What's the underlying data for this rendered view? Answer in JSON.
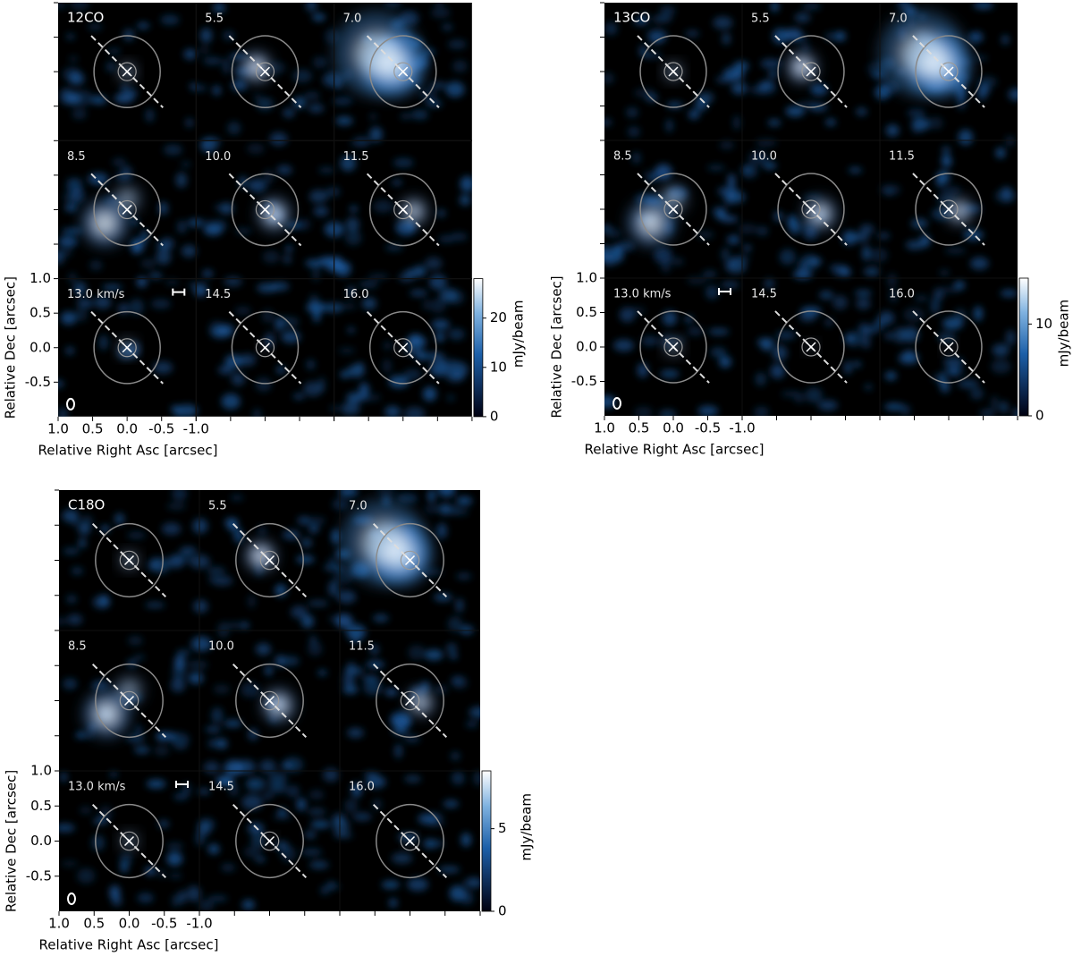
{
  "chart_data": [
    {
      "type": "channel_map",
      "title": "12CO",
      "channels": [
        "5.5",
        "7.0",
        "8.5",
        "10.0",
        "11.5",
        "13.0 km/s",
        "14.5",
        "16.0"
      ],
      "xlabel": "Relative Right Asc [arcsec]",
      "ylabel": "Relative Dec [arcsec]",
      "xlim": [
        1.0,
        -1.0
      ],
      "ylim": [
        -1.0,
        1.0
      ],
      "xticks": [
        {
          "value": 1.0,
          "label": "1.0"
        },
        {
          "value": 0.5,
          "label": "0.5"
        },
        {
          "value": 0.0,
          "label": "0.0"
        },
        {
          "value": -0.5,
          "label": "-0.5"
        },
        {
          "value": -1.0,
          "label": "-1.0"
        }
      ],
      "yticks": [
        {
          "value": 1.0,
          "label": "1.0"
        },
        {
          "value": 0.5,
          "label": "0.5"
        },
        {
          "value": 0.0,
          "label": "0.0"
        },
        {
          "value": -0.5,
          "label": "-0.5"
        }
      ],
      "colorbar_label": "mJy/beam",
      "clim": [
        0,
        28
      ],
      "cticks": [
        0,
        10,
        20
      ]
    },
    {
      "type": "channel_map",
      "title": "13CO",
      "channels": [
        "5.5",
        "7.0",
        "8.5",
        "10.0",
        "11.5",
        "13.0 km/s",
        "14.5",
        "16.0"
      ],
      "xlabel": "Relative Right Asc [arcsec]",
      "ylabel": "Relative Dec [arcsec]",
      "xlim": [
        1.0,
        -1.0
      ],
      "ylim": [
        -1.0,
        1.0
      ],
      "xticks": [
        {
          "value": 1.0,
          "label": "1.0"
        },
        {
          "value": 0.5,
          "label": "0.5"
        },
        {
          "value": 0.0,
          "label": "0.0"
        },
        {
          "value": -0.5,
          "label": "-0.5"
        },
        {
          "value": -1.0,
          "label": "-1.0"
        }
      ],
      "yticks": [
        {
          "value": 1.0,
          "label": "1.0"
        },
        {
          "value": 0.5,
          "label": "0.5"
        },
        {
          "value": 0.0,
          "label": "0.0"
        },
        {
          "value": -0.5,
          "label": "-0.5"
        }
      ],
      "colorbar_label": "mJy/beam",
      "clim": [
        0,
        15
      ],
      "cticks": [
        0,
        10
      ]
    },
    {
      "type": "channel_map",
      "title": "C18O",
      "channels": [
        "5.5",
        "7.0",
        "8.5",
        "10.0",
        "11.5",
        "13.0 km/s",
        "14.5",
        "16.0"
      ],
      "xlabel": "Relative Right Asc [arcsec]",
      "ylabel": "Relative Dec [arcsec]",
      "xlim": [
        1.0,
        -1.0
      ],
      "ylim": [
        -1.0,
        1.0
      ],
      "xticks": [
        {
          "value": 1.0,
          "label": "1.0"
        },
        {
          "value": 0.5,
          "label": "0.5"
        },
        {
          "value": 0.0,
          "label": "0.0"
        },
        {
          "value": -0.5,
          "label": "-0.5"
        },
        {
          "value": -1.0,
          "label": "-1.0"
        }
      ],
      "yticks": [
        {
          "value": 1.0,
          "label": "1.0"
        },
        {
          "value": 0.5,
          "label": "0.5"
        },
        {
          "value": 0.0,
          "label": "0.0"
        },
        {
          "value": -0.5,
          "label": "-0.5"
        }
      ],
      "colorbar_label": "mJy/beam",
      "clim": [
        0,
        8.5
      ],
      "cticks": [
        0,
        5
      ]
    }
  ]
}
